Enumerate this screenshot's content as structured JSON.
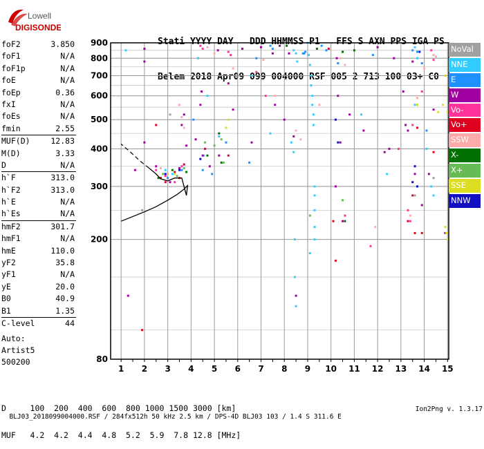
{
  "logo": {
    "line1": "Lowell",
    "line2": "DIGISONDE"
  },
  "header": {
    "line1": "Stati YYYY DAY   DDD HHMMSS P1   FFS S AXN PPS IGA PS",
    "line2": "Belem 2018 Apr09 099 004000 RSF 005 2 713 100 03+ C0"
  },
  "params": [
    [
      {
        "k": "foF2",
        "v": "3.850"
      },
      {
        "k": "foF1",
        "v": "N/A"
      },
      {
        "k": "foF1p",
        "v": "N/A"
      },
      {
        "k": "foE",
        "v": "N/A"
      },
      {
        "k": "foEp",
        "v": "0.36"
      },
      {
        "k": "fxI",
        "v": "N/A"
      },
      {
        "k": "foEs",
        "v": "N/A"
      },
      {
        "k": "fmin",
        "v": "2.55"
      }
    ],
    [
      {
        "k": "MUF(D)",
        "v": "12.83"
      },
      {
        "k": "M(D)",
        "v": "3.33"
      },
      {
        "k": "D",
        "v": "N/A"
      }
    ],
    [
      {
        "k": "h`F",
        "v": "313.0"
      },
      {
        "k": "h`F2",
        "v": "313.0"
      },
      {
        "k": "h`E",
        "v": "N/A"
      },
      {
        "k": "h`Es",
        "v": "N/A"
      }
    ],
    [
      {
        "k": "hmF2",
        "v": "301.7"
      },
      {
        "k": "hmF1",
        "v": "N/A"
      },
      {
        "k": "hmE",
        "v": "110.0"
      },
      {
        "k": "yF2",
        "v": "35.8"
      },
      {
        "k": "yF1",
        "v": "N/A"
      },
      {
        "k": "yE",
        "v": "20.0"
      },
      {
        "k": "B0",
        "v": "40.9"
      },
      {
        "k": "B1",
        "v": "1.35"
      }
    ],
    [
      {
        "k": "C-level",
        "v": "44"
      }
    ]
  ],
  "auto": {
    "line1": "Auto:",
    "line2": "Artist5",
    "line3": "500200"
  },
  "legend": [
    {
      "label": "NoVal",
      "color": "#a0a0a0"
    },
    {
      "label": "NNE",
      "color": "#33ccff"
    },
    {
      "label": "E",
      "color": "#1e90ff"
    },
    {
      "label": "W",
      "color": "#a000a0"
    },
    {
      "label": "Vo-",
      "color": "#ff3399"
    },
    {
      "label": "Vo+",
      "color": "#e00020"
    },
    {
      "label": "SSW",
      "color": "#ffaaaa"
    },
    {
      "label": "X-",
      "color": "#007000"
    },
    {
      "label": "X+",
      "color": "#66bb55"
    },
    {
      "label": "SSE",
      "color": "#dddd22"
    },
    {
      "label": "NNW",
      "color": "#1010c0"
    }
  ],
  "muf_table": {
    "line1": "D     100  200  400  600  800 1000 1500 3000 [km]",
    "line2": "MUF   4.2  4.2  4.4  4.8  5.2  5.9  7.8 12.8 [MHz]"
  },
  "footer": {
    "left": "BLJ03_2018099004000.RSF / 284fx512h 50 kHz 2.5 km / DPS-4D BLJ03 103 / 1.4 S 311.6 E",
    "right": "Ion2Png v. 1.3.17"
  },
  "chart_data": {
    "type": "scatter",
    "title": "",
    "xlabel": "",
    "ylabel": "",
    "xlim": [
      0.55,
      15.05
    ],
    "ylim": [
      80,
      900
    ],
    "x_ticks": [
      1,
      2,
      3,
      4,
      5,
      6,
      7,
      8,
      9,
      10,
      11,
      12,
      13,
      14,
      15
    ],
    "y_ticks": [
      80,
      200,
      300,
      400,
      500,
      600,
      700,
      800,
      900
    ],
    "y_scale": "log",
    "grid": true,
    "legend_position": "right",
    "series": [
      {
        "name": "NoVal",
        "points": [
          [
            1.9,
            250
          ],
          [
            2.0,
            860
          ],
          [
            3.1,
            520
          ],
          [
            13.6,
            280
          ],
          [
            14.4,
            320
          ]
        ]
      },
      {
        "name": "NNE",
        "points": [
          [
            9.0,
            900
          ],
          [
            9.05,
            820
          ],
          [
            9.1,
            760
          ],
          [
            9.15,
            700
          ],
          [
            9.15,
            650
          ],
          [
            9.2,
            600
          ],
          [
            9.2,
            560
          ],
          [
            9.25,
            520
          ],
          [
            9.25,
            480
          ],
          [
            9.3,
            300
          ],
          [
            9.3,
            280
          ],
          [
            9.3,
            250
          ],
          [
            9.3,
            220
          ],
          [
            9.3,
            200
          ],
          [
            9.1,
            180
          ],
          [
            8.4,
            850
          ],
          [
            8.5,
            830
          ],
          [
            8.55,
            780
          ],
          [
            8.3,
            420
          ],
          [
            8.4,
            390
          ],
          [
            8.45,
            200
          ],
          [
            8.45,
            150
          ],
          [
            8.5,
            120
          ],
          [
            4.55,
            380
          ],
          [
            4.3,
            800
          ],
          [
            4.7,
            600
          ],
          [
            5.2,
            440
          ],
          [
            3.2,
            330
          ],
          [
            2.9,
            340
          ],
          [
            13.6,
            870
          ],
          [
            13.7,
            800
          ],
          [
            13.6,
            560
          ],
          [
            13.7,
            300
          ],
          [
            14.1,
            400
          ],
          [
            14.3,
            300
          ],
          [
            14.4,
            280
          ],
          [
            12.4,
            330
          ],
          [
            11.3,
            520
          ],
          [
            7.4,
            450
          ],
          [
            6.6,
            700
          ],
          [
            1.2,
            850
          ]
        ]
      },
      {
        "name": "E",
        "points": [
          [
            8.8,
            830
          ],
          [
            8.85,
            830
          ],
          [
            8.9,
            840
          ],
          [
            7.5,
            860
          ],
          [
            7.4,
            880
          ],
          [
            6.8,
            800
          ],
          [
            6.5,
            360
          ],
          [
            5.5,
            420
          ],
          [
            4.1,
            500
          ],
          [
            3.6,
            340
          ],
          [
            3.0,
            320
          ],
          [
            13.7,
            840
          ],
          [
            13.9,
            770
          ],
          [
            14.1,
            460
          ],
          [
            13.5,
            850
          ],
          [
            11.8,
            820
          ],
          [
            10.3,
            770
          ],
          [
            9.8,
            850
          ],
          [
            9.6,
            880
          ],
          [
            4.5,
            340
          ],
          [
            4.9,
            330
          ]
        ]
      },
      {
        "name": "W",
        "points": [
          [
            2.0,
            860
          ],
          [
            2.0,
            780
          ],
          [
            2.0,
            420
          ],
          [
            2.5,
            350
          ],
          [
            3.1,
            310
          ],
          [
            3.5,
            345
          ],
          [
            3.8,
            410
          ],
          [
            3.6,
            480
          ],
          [
            3.7,
            520
          ],
          [
            4.2,
            430
          ],
          [
            4.4,
            560
          ],
          [
            4.45,
            620
          ],
          [
            4.5,
            380
          ],
          [
            4.8,
            350
          ],
          [
            5.15,
            850
          ],
          [
            5.2,
            380
          ],
          [
            5.6,
            660
          ],
          [
            5.8,
            540
          ],
          [
            6.2,
            860
          ],
          [
            6.6,
            420
          ],
          [
            7.0,
            870
          ],
          [
            7.5,
            830
          ],
          [
            7.6,
            560
          ],
          [
            7.8,
            880
          ],
          [
            8.0,
            500
          ],
          [
            8.2,
            830
          ],
          [
            8.4,
            440
          ],
          [
            8.5,
            130
          ],
          [
            10.2,
            300
          ],
          [
            10.3,
            600
          ],
          [
            10.25,
            800
          ],
          [
            10.4,
            420
          ],
          [
            10.5,
            230
          ],
          [
            10.8,
            520
          ],
          [
            11.4,
            460
          ],
          [
            12.0,
            870
          ],
          [
            12.3,
            390
          ],
          [
            12.5,
            400
          ],
          [
            12.7,
            800
          ],
          [
            13.1,
            620
          ],
          [
            13.2,
            480
          ],
          [
            13.3,
            460
          ],
          [
            13.5,
            780
          ],
          [
            13.6,
            330
          ],
          [
            13.9,
            260
          ],
          [
            14.2,
            330
          ],
          [
            14.4,
            540
          ],
          [
            14.9,
            210
          ],
          [
            1.6,
            340
          ],
          [
            1.3,
            130
          ]
        ]
      },
      {
        "name": "Vo-",
        "points": [
          [
            4.4,
            880
          ],
          [
            4.5,
            860
          ],
          [
            5.6,
            840
          ],
          [
            5.7,
            820
          ],
          [
            6.8,
            720
          ],
          [
            7.2,
            600
          ],
          [
            10.6,
            240
          ],
          [
            11.7,
            190
          ],
          [
            12.9,
            400
          ],
          [
            13.3,
            250
          ],
          [
            13.4,
            230
          ],
          [
            13.5,
            480
          ],
          [
            13.7,
            560
          ],
          [
            13.9,
            620
          ],
          [
            14.3,
            850
          ],
          [
            14.4,
            790
          ],
          [
            2.5,
            340
          ],
          [
            2.9,
            325
          ],
          [
            3.3,
            310
          ],
          [
            3.6,
            350
          ]
        ]
      },
      {
        "name": "Vo+",
        "points": [
          [
            2.7,
            320
          ],
          [
            2.9,
            310
          ],
          [
            3.3,
            335
          ],
          [
            3.5,
            320
          ],
          [
            3.7,
            355
          ],
          [
            13.3,
            230
          ],
          [
            13.5,
            280
          ],
          [
            13.6,
            210
          ],
          [
            13.7,
            470
          ],
          [
            13.9,
            210
          ],
          [
            10.1,
            230
          ],
          [
            10.2,
            170
          ],
          [
            9.9,
            860
          ],
          [
            5.6,
            380
          ],
          [
            4.6,
            400
          ],
          [
            1.9,
            100
          ],
          [
            14.4,
            390
          ],
          [
            2.5,
            480
          ]
        ]
      },
      {
        "name": "SSW",
        "points": [
          [
            3.5,
            560
          ],
          [
            3.6,
            510
          ],
          [
            3.7,
            470
          ],
          [
            4.7,
            870
          ],
          [
            5.0,
            830
          ],
          [
            5.8,
            740
          ],
          [
            7.6,
            600
          ],
          [
            7.1,
            790
          ],
          [
            8.5,
            460
          ],
          [
            8.7,
            430
          ],
          [
            9.5,
            560
          ],
          [
            10.4,
            800
          ],
          [
            10.6,
            760
          ],
          [
            11.9,
            220
          ],
          [
            13.4,
            240
          ],
          [
            13.7,
            590
          ],
          [
            14.0,
            740
          ],
          [
            14.4,
            820
          ],
          [
            14.5,
            810
          ],
          [
            3.0,
            330
          ],
          [
            2.7,
            345
          ]
        ]
      },
      {
        "name": "X-",
        "points": [
          [
            9.4,
            860
          ],
          [
            10.5,
            840
          ],
          [
            10.6,
            230
          ],
          [
            2.6,
            320
          ],
          [
            3.2,
            340
          ],
          [
            3.8,
            335
          ],
          [
            4.7,
            380
          ],
          [
            5.2,
            450
          ],
          [
            5.3,
            360
          ],
          [
            11.0,
            850
          ],
          [
            8.1,
            880
          ]
        ]
      },
      {
        "name": "X+",
        "points": [
          [
            2.8,
            330
          ],
          [
            3.4,
            325
          ],
          [
            3.7,
            345
          ],
          [
            4.6,
            420
          ],
          [
            5.0,
            410
          ],
          [
            5.3,
            430
          ],
          [
            9.1,
            240
          ],
          [
            10.5,
            270
          ],
          [
            5.4,
            360
          ]
        ]
      },
      {
        "name": "SSE",
        "points": [
          [
            5.6,
            500
          ],
          [
            5.5,
            470
          ],
          [
            13.7,
            560
          ],
          [
            14.6,
            530
          ],
          [
            14.9,
            700
          ],
          [
            14.8,
            560
          ],
          [
            15.0,
            530
          ],
          [
            14.9,
            220
          ],
          [
            14.95,
            210
          ],
          [
            15.0,
            200
          ],
          [
            3.3,
            330
          ]
        ]
      },
      {
        "name": "NNW",
        "points": [
          [
            13.6,
            350
          ],
          [
            13.5,
            310
          ],
          [
            13.7,
            300
          ],
          [
            13.8,
            840
          ],
          [
            10.2,
            500
          ],
          [
            10.3,
            420
          ],
          [
            2.9,
            330
          ],
          [
            3.5,
            340
          ],
          [
            4.4,
            370
          ]
        ]
      }
    ],
    "profile_curve": [
      [
        1.0,
        230
      ],
      [
        2.0,
        247
      ],
      [
        2.5,
        257
      ],
      [
        3.0,
        270
      ],
      [
        3.4,
        282
      ],
      [
        3.7,
        294
      ],
      [
        3.85,
        302
      ],
      [
        3.8,
        280
      ],
      [
        3.6,
        320
      ],
      [
        3.3,
        320
      ],
      [
        3.0,
        313
      ],
      [
        2.7,
        318
      ],
      [
        2.5,
        330
      ],
      [
        2.2,
        345
      ]
    ],
    "profile_dashed": [
      [
        2.2,
        345
      ],
      [
        1.8,
        365
      ],
      [
        1.4,
        390
      ],
      [
        1.0,
        415
      ]
    ]
  }
}
